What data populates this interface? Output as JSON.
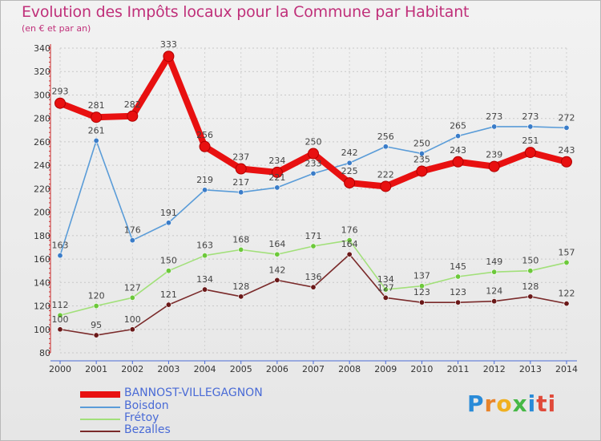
{
  "header": {
    "title": "Evolution des Impôts locaux pour la Commune par Habitant",
    "subtitle": "(en € et par an)"
  },
  "logo": {
    "text": "Proxiti",
    "letters": [
      "P",
      "r",
      "o",
      "x",
      "i",
      "ti"
    ]
  },
  "chart_data": {
    "type": "line",
    "title": "Evolution des Impôts locaux pour la Commune par Habitant",
    "subtitle": "(en € et par an)",
    "xlabel": "",
    "ylabel": "",
    "ylim": [
      80,
      340
    ],
    "yticks": [
      80,
      100,
      120,
      140,
      160,
      180,
      200,
      220,
      240,
      260,
      280,
      300,
      320,
      340
    ],
    "grid": true,
    "legend_position": "bottom-left",
    "categories": [
      "2000",
      "2001",
      "2002",
      "2003",
      "2004",
      "2005",
      "2006",
      "2007",
      "2008",
      "2009",
      "2010",
      "2011",
      "2012",
      "2013",
      "2014"
    ],
    "series": [
      {
        "name": "BANNOST-VILLEGAGNON",
        "color": "#e81010",
        "marker_color": "#e81010",
        "bold": true,
        "values": [
          293,
          281,
          282,
          333,
          256,
          237,
          234,
          250,
          225,
          222,
          235,
          243,
          239,
          251,
          243
        ]
      },
      {
        "name": "Boisdon",
        "color": "#5a9cd8",
        "marker_color": "#3a7cc8",
        "bold": false,
        "values": [
          163,
          261,
          176,
          191,
          219,
          217,
          221,
          233,
          242,
          256,
          250,
          265,
          273,
          273,
          272
        ]
      },
      {
        "name": "Frétoy",
        "color": "#a2e07a",
        "marker_color": "#6cc83a",
        "bold": false,
        "values": [
          112,
          120,
          127,
          150,
          163,
          168,
          164,
          171,
          176,
          134,
          137,
          145,
          149,
          150,
          157
        ]
      },
      {
        "name": "Bezalles",
        "color": "#7a2a2a",
        "marker_color": "#6a1818",
        "bold": false,
        "values": [
          100,
          95,
          100,
          121,
          134,
          128,
          142,
          136,
          164,
          127,
          123,
          123,
          124,
          128,
          122
        ]
      }
    ]
  }
}
